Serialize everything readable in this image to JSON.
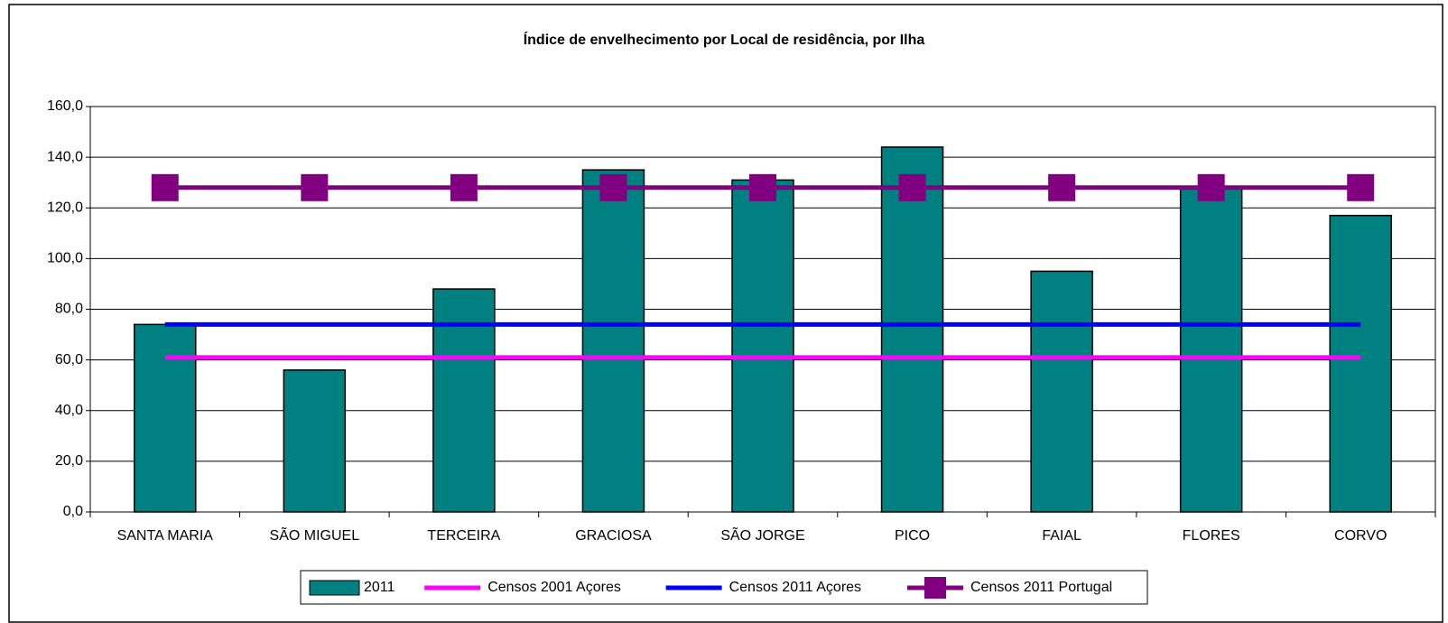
{
  "chart_data": {
    "type": "bar",
    "title": "Índice de envelhecimento por Local de residência, por Ilha",
    "categories": [
      "SANTA MARIA",
      "SÃO MIGUEL",
      "TERCEIRA",
      "GRACIOSA",
      "SÃO JORGE",
      "PICO",
      "FAIAL",
      "FLORES",
      "CORVO"
    ],
    "series": [
      {
        "name": "2011",
        "type": "bar",
        "color": "#008080",
        "values": [
          74,
          56,
          88,
          135,
          131,
          144,
          95,
          128,
          117
        ]
      },
      {
        "name": "Censos 2001 Açores",
        "type": "line",
        "color": "#ff00ff",
        "values": [
          61,
          61,
          61,
          61,
          61,
          61,
          61,
          61,
          61
        ]
      },
      {
        "name": "Censos 2011 Açores",
        "type": "line",
        "color": "#0000ff",
        "values": [
          74,
          74,
          74,
          74,
          74,
          74,
          74,
          74,
          74
        ]
      },
      {
        "name": "Censos 2011 Portugal",
        "type": "line",
        "marker": "square",
        "color": "#800080",
        "values": [
          128,
          128,
          128,
          128,
          128,
          128,
          128,
          128,
          128
        ]
      }
    ],
    "ylim": [
      0,
      160
    ],
    "yticks": [
      {
        "value": 0,
        "label": "0,0"
      },
      {
        "value": 20,
        "label": "20,0"
      },
      {
        "value": 40,
        "label": "40,0"
      },
      {
        "value": 60,
        "label": "60,0"
      },
      {
        "value": 80,
        "label": "80,0"
      },
      {
        "value": 100,
        "label": "100,0"
      },
      {
        "value": 120,
        "label": "120,0"
      },
      {
        "value": 140,
        "label": "140,0"
      },
      {
        "value": 160,
        "label": "160,0"
      }
    ],
    "grid": true,
    "legend": "bottom"
  }
}
